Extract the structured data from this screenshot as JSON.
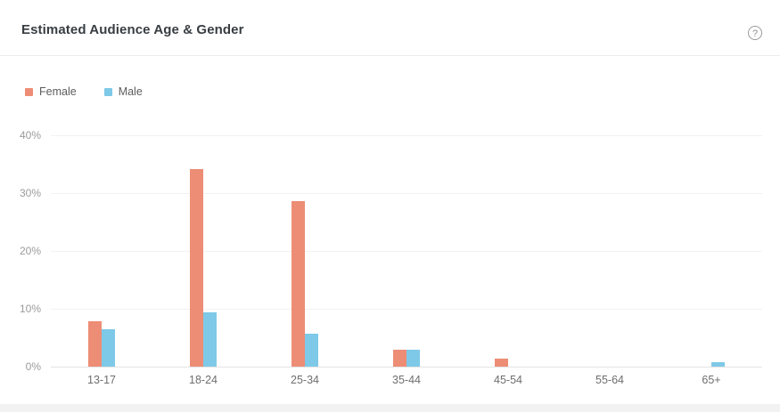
{
  "header": {
    "title": "Estimated Audience Age & Gender"
  },
  "icons": {
    "help": "?"
  },
  "chart_data": {
    "type": "bar",
    "title": "Estimated Audience Age & Gender",
    "categories": [
      "13-17",
      "18-24",
      "25-34",
      "35-44",
      "45-54",
      "55-64",
      "65+"
    ],
    "series": [
      {
        "name": "Female",
        "color": "#ED8D75",
        "values": [
          7.9,
          34.2,
          28.6,
          2.9,
          1.4,
          0,
          0
        ]
      },
      {
        "name": "Male",
        "color": "#7EC9E8",
        "values": [
          6.4,
          9.4,
          5.7,
          2.9,
          0,
          0,
          0.8
        ]
      }
    ],
    "xlabel": "",
    "ylabel": "",
    "ylim": [
      0,
      40
    ],
    "y_tick_labels": [
      "0%",
      "10%",
      "20%",
      "30%",
      "40%"
    ],
    "grid": true,
    "legend_position": "top-left"
  }
}
